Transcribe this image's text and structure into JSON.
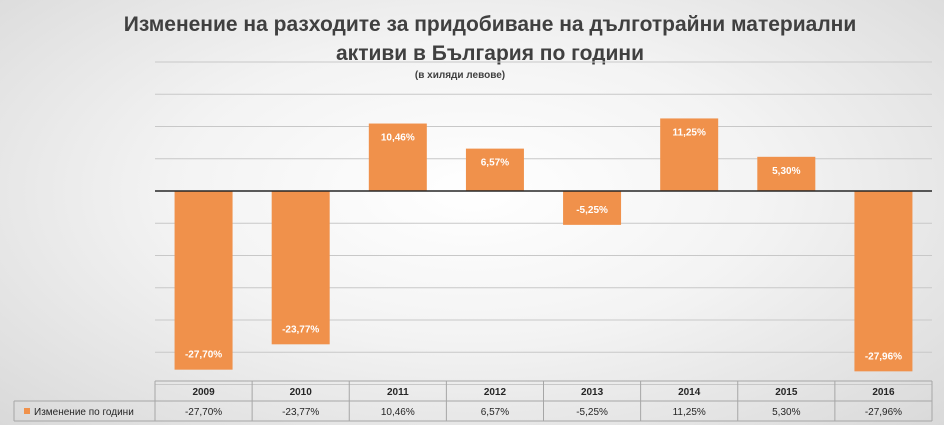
{
  "chart_data": {
    "type": "bar",
    "title": "Изменение на разходите за придобиване на дълготрайни материални активи в България по години",
    "subtitle": "(в хиляди левове)",
    "categories": [
      "2009",
      "2010",
      "2011",
      "2012",
      "2013",
      "2014",
      "2015",
      "2016"
    ],
    "series": [
      {
        "name": "Изменение по години",
        "values": [
          -27.7,
          -23.77,
          10.46,
          6.57,
          -5.25,
          11.25,
          5.3,
          -27.96
        ],
        "labels": [
          "-27,70%",
          "-23,77%",
          "10,46%",
          "6,57%",
          "-5,25%",
          "11,25%",
          "5,30%",
          "-27,96%"
        ],
        "color": "#f0914b"
      }
    ],
    "ylim": [
      -30,
      20
    ],
    "grid": true,
    "legend": "data-table",
    "data_table": true
  },
  "colors": {
    "bar": "#f0914b",
    "grid": "#c8c8c8",
    "axis": "#262626"
  }
}
